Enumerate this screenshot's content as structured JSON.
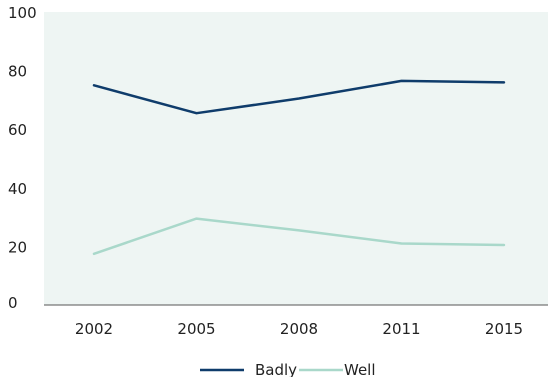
{
  "chart_data": {
    "type": "line",
    "categories": [
      "2002",
      "2005",
      "2008",
      "2011",
      "2015"
    ],
    "series": [
      {
        "name": "Badly",
        "values": [
          76,
          66.5,
          71.5,
          77.5,
          77
        ],
        "color": "#0f3c6b"
      },
      {
        "name": "Well",
        "values": [
          18.5,
          30.5,
          26.5,
          22,
          21.5
        ],
        "color": "#a9d8ca"
      }
    ],
    "ylim": [
      0,
      100
    ],
    "yticks": [
      0,
      20,
      40,
      60,
      80,
      100
    ],
    "title": "",
    "xlabel": "",
    "ylabel": "",
    "grid": false,
    "legend_position": "bottom-center",
    "plot_background": "#eef5f3",
    "axis_color": "#555555"
  }
}
